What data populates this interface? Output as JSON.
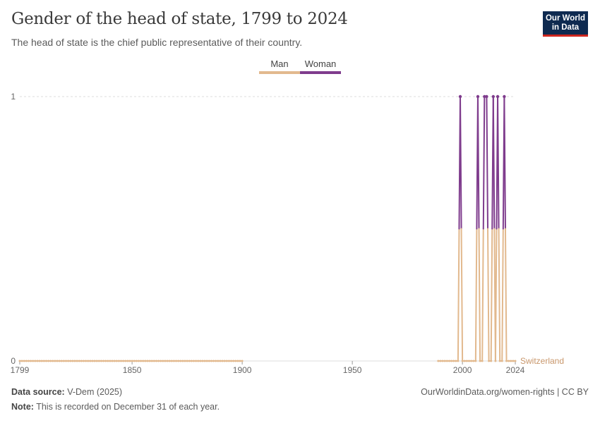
{
  "header": {
    "title": "Gender of the head of state, 1799 to 2024",
    "subtitle": "The head of state is the chief public representative of their country.",
    "logo_line1": "Our World",
    "logo_line2": "in Data"
  },
  "footer": {
    "source_label": "Data source:",
    "source_value": "V-Dem (2025)",
    "note_label": "Note:",
    "note_value": "This is recorded on December 31 of each year.",
    "credit": "OurWorldinData.org/women-rights | CC BY"
  },
  "chart_data": {
    "type": "line",
    "title": "Gender of the head of state, 1799 to 2024",
    "subtitle": "The head of state is the chief public representative of their country.",
    "entity": "Switzerland",
    "legend": [
      {
        "name": "Man",
        "color": "#e2b98e"
      },
      {
        "name": "Woman",
        "color": "#7f3c8d"
      }
    ],
    "legend_position": "top-center",
    "colors": {
      "man": "#e2b98e",
      "woman": "#7f3c8d",
      "entity_label": "#c8966a"
    },
    "xlim": [
      1799,
      2024
    ],
    "ylim": [
      0,
      1
    ],
    "x_ticks": [
      1799,
      1850,
      1900,
      1950,
      2000,
      2024
    ],
    "y_ticks": [
      0,
      1
    ],
    "grid": "horizontal-dashed",
    "y_gap_years": [
      1900,
      1989
    ],
    "woman_years": [
      1999,
      2007,
      2010,
      2011,
      2014,
      2016,
      2019
    ],
    "start_year": 1799,
    "end_year": 2024
  }
}
